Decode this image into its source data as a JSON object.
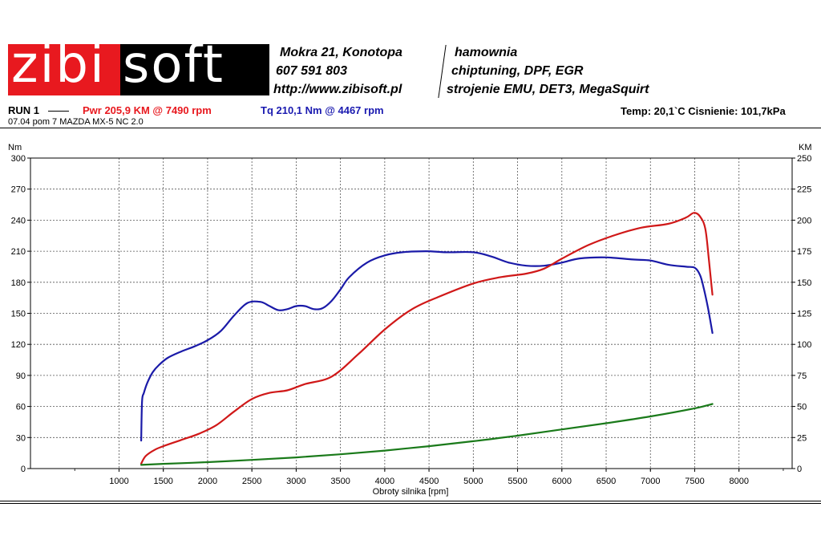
{
  "header": {
    "logo_text_left": "zibi",
    "logo_text_right": "soft",
    "address_line1": "Mokra 21, Konotopa",
    "address_line2": "607 591 803",
    "address_line3": "http://www.zibisoft.pl",
    "services_line1": "hamownia",
    "services_line2": "chiptuning, DPF, EGR",
    "services_line3": "strojenie EMU, DET3, MegaSquirt"
  },
  "run": {
    "label": "RUN 1",
    "power": "Pwr  205,9 KM @ 7490 rpm",
    "torque": "Tq 210,1 Nm @ 4467 rpm",
    "conditions": "Temp: 20,1`C   Cisnienie: 101,7kPa",
    "description": "07.04 pom 7 MAZDA MX-5 NC 2.0"
  },
  "colors": {
    "torque": "#1a1aa8",
    "power": "#d01818",
    "green": "#1a7a1a",
    "logo_red": "#e8191f",
    "pwr_text": "#e8191f",
    "tq_text": "#1a1ab0"
  },
  "chart_data": {
    "type": "line",
    "xlabel": "Obroty silnika [rpm]",
    "ylabel_left": "Nm",
    "ylabel_right": "KM",
    "xlim": [
      0,
      8600
    ],
    "ylim_left": [
      0,
      300
    ],
    "ylim_right": [
      0,
      250
    ],
    "x_ticks": [
      1000,
      1500,
      2000,
      2500,
      3000,
      3500,
      4000,
      4500,
      5000,
      5500,
      6000,
      6500,
      7000,
      7500,
      8000
    ],
    "y_ticks_left": [
      0,
      30,
      60,
      90,
      120,
      150,
      180,
      210,
      240,
      270,
      300
    ],
    "y_ticks_right": [
      0,
      25,
      50,
      75,
      100,
      125,
      150,
      175,
      200,
      225,
      250
    ],
    "grid": true,
    "series": [
      {
        "axis": "left",
        "color": "#1a1aa8",
        "x": [
          1250,
          1260,
          1280,
          1320,
          1380,
          1450,
          1550,
          1700,
          1850,
          2000,
          2150,
          2300,
          2450,
          2600,
          2700,
          2800,
          2900,
          3000,
          3100,
          3200,
          3300,
          3400,
          3500,
          3600,
          3800,
          4000,
          4200,
          4467,
          4700,
          5000,
          5200,
          5400,
          5600,
          5800,
          6000,
          6200,
          6500,
          6800,
          7000,
          7200,
          7400,
          7500,
          7560,
          7600,
          7650,
          7700
        ],
        "y": [
          27,
          65,
          73,
          83,
          93,
          100,
          107,
          113,
          118,
          124,
          133,
          148,
          160,
          161,
          157,
          153,
          154,
          157,
          157,
          154,
          155,
          162,
          173,
          185,
          199,
          206,
          209,
          210,
          209,
          209,
          205,
          199,
          196,
          196,
          199,
          203,
          204,
          202,
          201,
          197,
          195,
          194,
          187,
          175,
          155,
          131
        ]
      },
      {
        "axis": "right",
        "color": "#d01818",
        "x": [
          1250,
          1300,
          1400,
          1500,
          1700,
          1900,
          2100,
          2300,
          2500,
          2700,
          2900,
          3100,
          3400,
          3700,
          4000,
          4300,
          4600,
          5000,
          5300,
          5600,
          5800,
          6000,
          6300,
          6600,
          6900,
          7200,
          7400,
          7490,
          7560,
          7620,
          7660,
          7700
        ],
        "y": [
          4,
          10,
          15,
          18,
          23,
          28,
          35,
          46,
          56,
          61,
          63,
          68,
          74,
          92,
          112,
          128,
          138,
          149,
          154,
          157,
          161,
          169,
          180,
          188,
          194,
          197,
          202,
          205.9,
          203,
          193,
          168,
          140
        ]
      },
      {
        "axis": "right",
        "color": "#1a7a1a",
        "x": [
          1250,
          1500,
          2000,
          2500,
          3000,
          3500,
          4000,
          4500,
          5000,
          5500,
          6000,
          6500,
          7000,
          7500,
          7700
        ],
        "y": [
          3,
          3.8,
          5.2,
          7,
          9,
          11.5,
          14.5,
          18,
          22,
          26.5,
          31.5,
          36.5,
          42,
          48.5,
          52
        ]
      }
    ]
  }
}
